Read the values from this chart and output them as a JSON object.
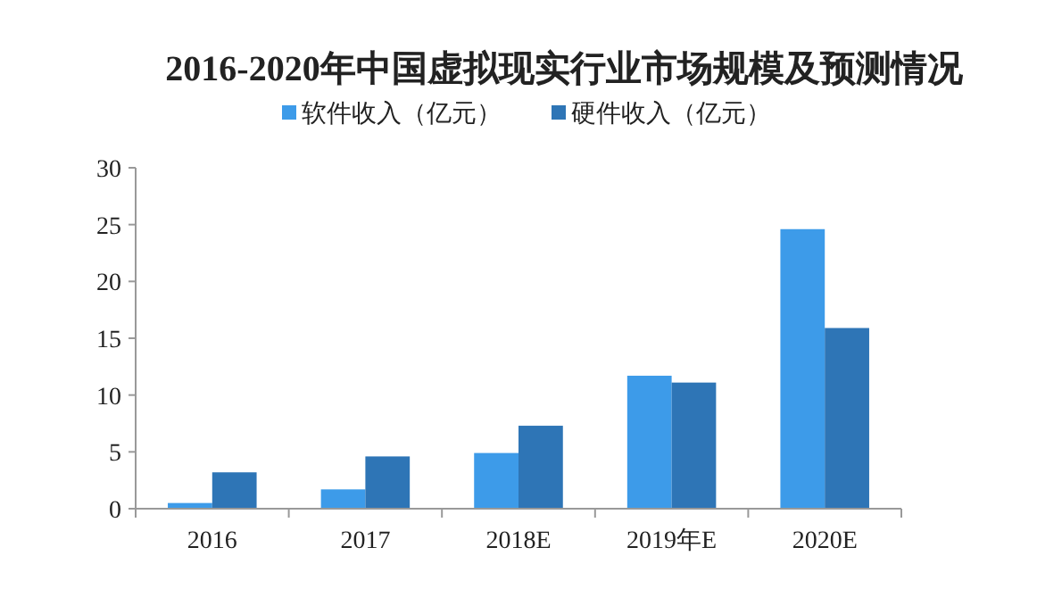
{
  "chart_data": {
    "type": "bar",
    "title": "2016-2020年中国虚拟现实行业市场规模及预测情况",
    "categories": [
      "2016",
      "2017",
      "2018E",
      "2019年E",
      "2020E"
    ],
    "series": [
      {
        "name": "软件收入（亿元）",
        "color": "#3d9be9",
        "values": [
          0.5,
          1.7,
          4.9,
          11.7,
          24.6
        ]
      },
      {
        "name": "硬件收入（亿元）",
        "color": "#2e75b6",
        "values": [
          3.2,
          4.6,
          7.3,
          11.1,
          15.9
        ]
      }
    ],
    "ylim": [
      0,
      30
    ],
    "yticks": [
      0,
      5,
      10,
      15,
      20,
      25,
      30
    ],
    "grid": false,
    "legend": "top"
  }
}
